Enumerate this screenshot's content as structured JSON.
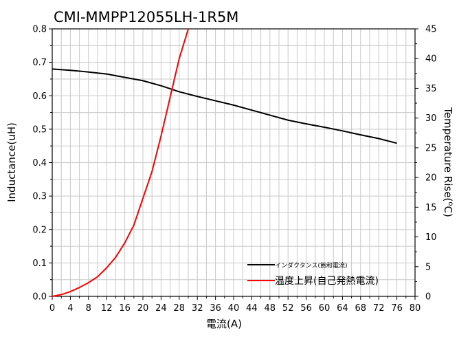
{
  "chart_data": {
    "type": "line",
    "title": "CMI-MMPP12055LH-1R5M",
    "xlabel": "電流(A)",
    "ylabel": "Inductance(uH)",
    "y2label_main": "Temperature Rise(",
    "y2label_sup": "o",
    "y2label_end": "C)",
    "xlim": [
      0,
      80
    ],
    "ylim": [
      0,
      0.8
    ],
    "y2lim": [
      0,
      45
    ],
    "xticks": [
      "0",
      "4",
      "8",
      "12",
      "16",
      "20",
      "24",
      "28",
      "32",
      "36",
      "40",
      "44",
      "48",
      "52",
      "56",
      "60",
      "64",
      "68",
      "72",
      "76",
      "80"
    ],
    "yticks": [
      "0.0",
      "0.1",
      "0.2",
      "0.3",
      "0.4",
      "0.5",
      "0.6",
      "0.7",
      "0.8"
    ],
    "y2ticks": [
      "0",
      "5",
      "10",
      "15",
      "20",
      "25",
      "30",
      "35",
      "40",
      "45"
    ],
    "grid": true,
    "legend_position": "bottom-right",
    "series": [
      {
        "name": "インダクタンス(飽和電流)",
        "axis": "left",
        "color": "#000000",
        "x": [
          0,
          4,
          8,
          12,
          16,
          20,
          24,
          28,
          32,
          36,
          40,
          44,
          48,
          52,
          56,
          60,
          64,
          68,
          72,
          76
        ],
        "y": [
          0.68,
          0.676,
          0.671,
          0.665,
          0.655,
          0.645,
          0.63,
          0.612,
          0.598,
          0.585,
          0.572,
          0.557,
          0.542,
          0.527,
          0.516,
          0.506,
          0.495,
          0.483,
          0.472,
          0.458
        ]
      },
      {
        "name": "温度上昇(自己発熱電流)",
        "axis": "right",
        "color": "#ff0000",
        "x": [
          0,
          2,
          4,
          6,
          8,
          10,
          12,
          14,
          16,
          18,
          20,
          22,
          24,
          26,
          28,
          30
        ],
        "y": [
          0,
          0.3,
          0.8,
          1.5,
          2.3,
          3.3,
          4.8,
          6.6,
          9,
          12,
          16.5,
          21,
          27,
          33.5,
          40,
          45
        ]
      }
    ]
  }
}
